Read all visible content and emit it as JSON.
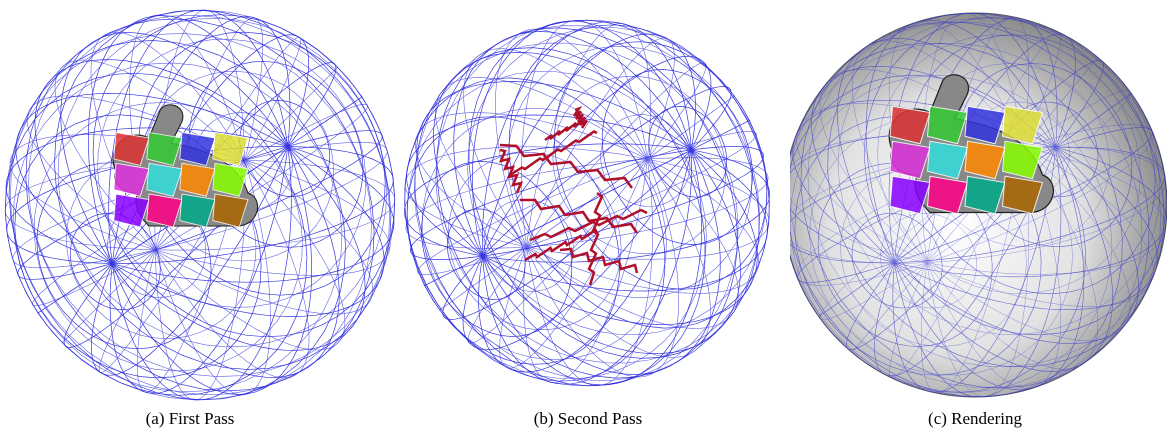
{
  "panels": [
    {
      "caption": "(a) First Pass"
    },
    {
      "caption": "(b) Second Pass"
    },
    {
      "caption": "(c) Rendering"
    }
  ]
}
